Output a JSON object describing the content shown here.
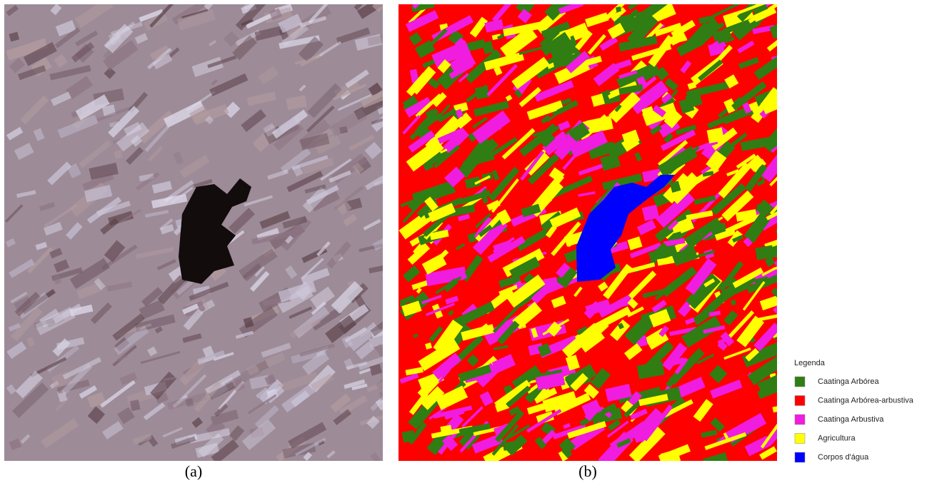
{
  "figure": {
    "panels": [
      {
        "label": "(a)"
      },
      {
        "label": "(b)"
      }
    ],
    "legend": {
      "title": "Legenda",
      "items": [
        {
          "name": "Caatinga Arbórea",
          "color": "#2f7d13"
        },
        {
          "name": "Caatinga Arbórea-arbustiva",
          "color": "#ff0000"
        },
        {
          "name": "Caatinga Arbustiva",
          "color": "#f01ce0"
        },
        {
          "name": "Agricultura",
          "color": "#ffff00"
        },
        {
          "name": "Corpos d'água",
          "color": "#0000ff"
        }
      ]
    }
  }
}
